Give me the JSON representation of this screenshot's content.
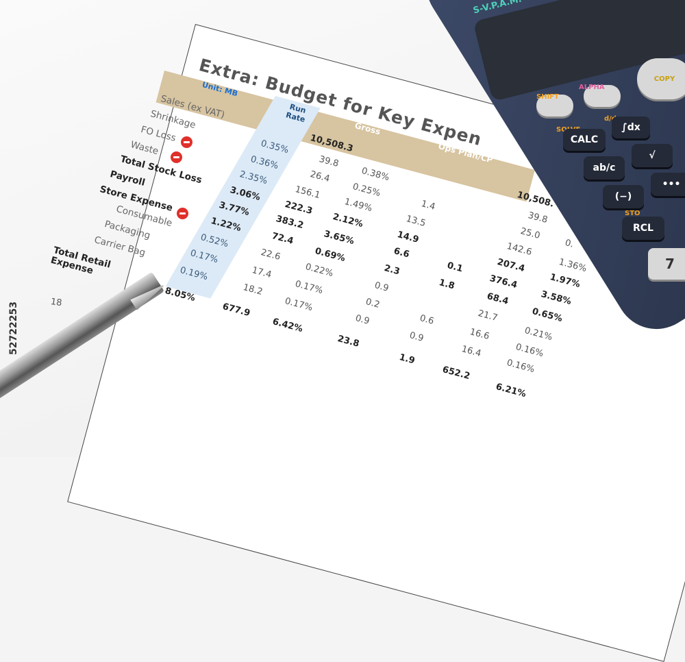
{
  "document": {
    "title": "Extra: Budget for Key Expen",
    "unit": "Unit: MB",
    "headers": {
      "run_rate": "Run Rate",
      "gross": "Gross",
      "ops_plan": "Ops Plan/CP"
    },
    "row_labels": [
      "Sales (ex VAT)",
      "Shrinkage",
      "FO Loss",
      "Waste",
      "Total Stock Loss",
      "Payroll",
      "Store Expense",
      "Consumable",
      "Packaging",
      "Carrier Bag",
      "Total Retail Expense"
    ],
    "run_rate": [
      "0.35%",
      "0.36%",
      "2.35%",
      "3.06%",
      "3.77%",
      "1.22%",
      "0.52%",
      "0.17%",
      "0.19%",
      "8.05%"
    ],
    "col_a": [
      "10,508.3",
      "39.8",
      "26.4",
      "156.1",
      "222.3",
      "383.2",
      "72.4",
      "22.6",
      "17.4",
      "18.2",
      "677.9"
    ],
    "col_b": [
      "0.38%",
      "0.25%",
      "1.49%",
      "2.12%",
      "3.65%",
      "0.69%",
      "0.22%",
      "0.17%",
      "0.17%",
      "6.42%"
    ],
    "col_c": [
      "1.4",
      "13.5",
      "14.9",
      "6.6",
      "2.3",
      "0.9",
      "0.2",
      "0.9",
      "23.8"
    ],
    "col_d": [
      "0.1",
      "1.8",
      "0.6",
      "0.9",
      "1.9"
    ],
    "col_e": [
      "10,508.",
      "39.8",
      "25.0",
      "142.6",
      "207.4",
      "376.4",
      "68.4",
      "21.7",
      "16.6",
      "16.4",
      "652.2"
    ],
    "col_f": [
      "0.",
      "1.36%",
      "1.97%",
      "3.58%",
      "0.65%",
      "0.21%",
      "0.16%",
      "0.16%",
      "6.21%"
    ],
    "footer_number": "18"
  },
  "calculator": {
    "brand_text": "S-V.P.A.M.",
    "keys": [
      "CALC",
      "∫dx",
      "ab/c",
      "√",
      "(−)",
      "•••",
      "RCL",
      "7"
    ],
    "labels": [
      "SHIFT",
      "ALPHA",
      "SOLVE",
      "d/dx",
      "STO",
      "COPY"
    ]
  },
  "watermark": "52722253",
  "icons": [
    "stop-icon",
    "pen",
    "calculator"
  ]
}
